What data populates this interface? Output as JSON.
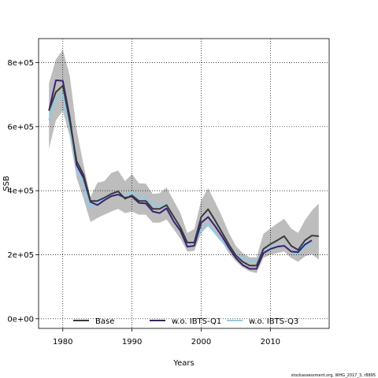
{
  "chart_data": {
    "type": "line",
    "xlabel": "Years",
    "ylabel": "SSB",
    "xlim": [
      1976.5,
      2018.5
    ],
    "ylim": [
      -30000,
      875000
    ],
    "x_ticks": [
      1980,
      1990,
      2000,
      2010
    ],
    "x_tick_labels": [
      "1980",
      "1990",
      "2000",
      "2010"
    ],
    "y_ticks": [
      0,
      200000,
      400000,
      600000,
      800000
    ],
    "y_tick_labels": [
      "0e+00",
      "2e+05",
      "4e+05",
      "6e+05",
      "8e+05"
    ],
    "grid": true,
    "legend_position": "bottom",
    "x": [
      1978,
      1979,
      1980,
      1981,
      1982,
      1983,
      1984,
      1985,
      1986,
      1987,
      1988,
      1989,
      1990,
      1991,
      1992,
      1993,
      1994,
      1995,
      1996,
      1997,
      1998,
      1999,
      2000,
      2001,
      2002,
      2003,
      2004,
      2005,
      2006,
      2007,
      2008,
      2009,
      2010,
      2011,
      2012,
      2013,
      2014,
      2015,
      2016,
      2017
    ],
    "band": {
      "upper": [
        735000,
        810000,
        840000,
        760000,
        590000,
        480000,
        380000,
        425000,
        430000,
        455000,
        463000,
        430000,
        452000,
        423000,
        422000,
        390000,
        392000,
        410000,
        370000,
        330000,
        268000,
        280000,
        370000,
        408000,
        365000,
        320000,
        268000,
        228000,
        205000,
        192000,
        192000,
        265000,
        282000,
        298000,
        312000,
        282000,
        268000,
        308000,
        338000,
        360000
      ],
      "lower": [
        530000,
        620000,
        650000,
        570000,
        440000,
        375000,
        302000,
        315000,
        325000,
        335000,
        343000,
        330000,
        335000,
        325000,
        325000,
        300000,
        300000,
        310000,
        280000,
        250000,
        210000,
        212000,
        268000,
        290000,
        268000,
        240000,
        205000,
        180000,
        160000,
        148000,
        143000,
        190000,
        200000,
        205000,
        210000,
        190000,
        178000,
        195000,
        202000,
        185000
      ]
    },
    "series": [
      {
        "name": "Base",
        "color": "#3a3a3a",
        "values": [
          650000,
          708000,
          728000,
          618000,
          492000,
          450000,
          368000,
          368000,
          378000,
          390000,
          398000,
          375000,
          385000,
          368000,
          368000,
          343000,
          343000,
          355000,
          320000,
          285000,
          238000,
          238000,
          318000,
          342000,
          308000,
          270000,
          232000,
          198000,
          178000,
          166000,
          166000,
          218000,
          233000,
          245000,
          258000,
          228000,
          215000,
          245000,
          260000,
          258000
        ]
      },
      {
        "name": "w.o. IBTS-Q1",
        "color": "#3c1f78",
        "values": [
          650000,
          745000,
          743000,
          630000,
          480000,
          440000,
          365000,
          355000,
          370000,
          383000,
          388000,
          378000,
          382000,
          362000,
          360000,
          335000,
          330000,
          345000,
          305000,
          275000,
          225000,
          228000,
          300000,
          318000,
          290000,
          258000,
          222000,
          190000,
          168000,
          156000,
          156000,
          205000,
          218000,
          225000,
          228000,
          210000,
          208000,
          232000,
          245000,
          null
        ]
      },
      {
        "name": "w.o. IBTS-Q3",
        "color": "#87ceeb",
        "values": [
          620000,
          685000,
          700000,
          600000,
          470000,
          420000,
          345000,
          360000,
          375000,
          385000,
          400000,
          378000,
          395000,
          382000,
          378000,
          355000,
          352000,
          358000,
          318000,
          282000,
          228000,
          232000,
          278000,
          292000,
          268000,
          242000,
          218000,
          200000,
          188000,
          180000,
          180000,
          210000,
          222000,
          228000,
          228000,
          210000,
          202000,
          225000,
          235000,
          null
        ]
      }
    ]
  },
  "credit": "stockassessment.org, WHG_2017_3, r8895"
}
